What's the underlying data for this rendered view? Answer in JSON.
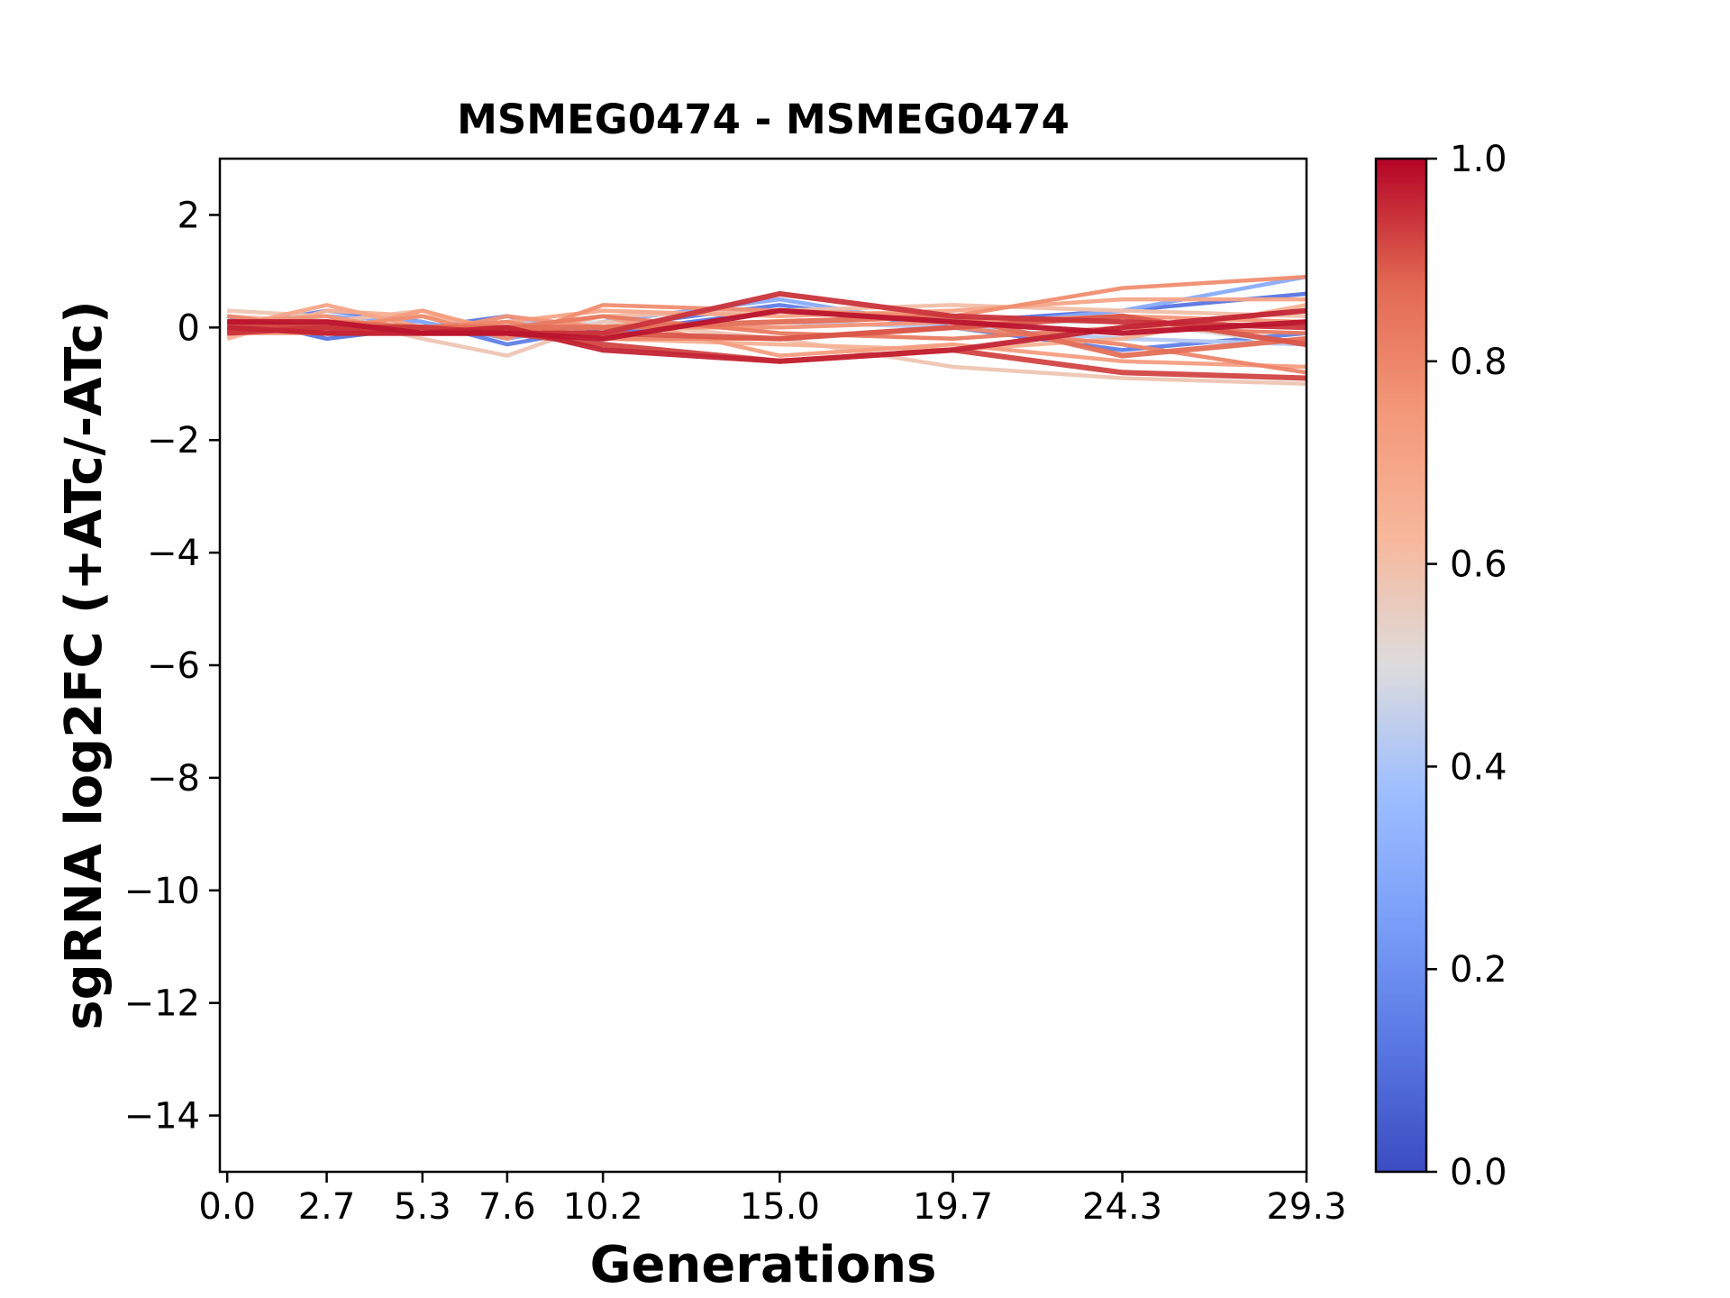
{
  "chart_data": {
    "type": "line",
    "title": "MSMEG0474 - MSMEG0474",
    "xlabel": "Generations",
    "ylabel": "sgRNA log2FC (+ATc/-ATc)",
    "x": [
      0.0,
      2.7,
      5.3,
      7.6,
      10.2,
      15.0,
      19.7,
      24.3,
      29.3
    ],
    "x_tick_labels": [
      "0.0",
      "2.7",
      "5.3",
      "7.6",
      "10.2",
      "15.0",
      "19.7",
      "24.3",
      "29.3"
    ],
    "xlim": [
      -0.2,
      29.3
    ],
    "ylim": [
      -15,
      3
    ],
    "y_ticks": [
      2,
      0,
      -2,
      -4,
      -6,
      -8,
      -10,
      -12,
      -14
    ],
    "y_tick_labels": [
      "2",
      "0",
      "−2",
      "−4",
      "−6",
      "−8",
      "−10",
      "−12",
      "−14"
    ],
    "grid": false,
    "colorbar": {
      "colormap": "coolwarm",
      "range": [
        0.0,
        1.0
      ],
      "ticks": [
        0.0,
        0.2,
        0.4,
        0.6,
        0.8,
        1.0
      ],
      "tick_labels": [
        "0.0",
        "0.2",
        "0.4",
        "0.6",
        "0.8",
        "1.0"
      ]
    },
    "series": [
      {
        "score": 0.12,
        "values": [
          0.2,
          -0.2,
          0.0,
          0.2,
          -0.1,
          0.3,
          0.1,
          0.3,
          0.6
        ]
      },
      {
        "score": 0.15,
        "values": [
          0.0,
          0.3,
          0.1,
          -0.3,
          0.0,
          0.4,
          0.0,
          -0.4,
          -0.1
        ]
      },
      {
        "score": 0.3,
        "values": [
          0.1,
          0.2,
          0.1,
          -0.2,
          0.1,
          0.5,
          0.0,
          0.3,
          0.9
        ]
      },
      {
        "score": 0.42,
        "values": [
          0.1,
          0.0,
          0.0,
          0.1,
          0.0,
          0.1,
          0.0,
          -0.2,
          -0.3
        ]
      },
      {
        "score": 0.5,
        "values": [
          0.0,
          0.1,
          0.0,
          0.0,
          0.1,
          0.0,
          0.1,
          0.1,
          -0.3
        ]
      },
      {
        "score": 0.58,
        "values": [
          0.3,
          0.2,
          -0.2,
          -0.5,
          0.1,
          -0.2,
          -0.7,
          -0.9,
          -1.0
        ]
      },
      {
        "score": 0.6,
        "values": [
          0.2,
          0.1,
          0.3,
          -0.1,
          0.2,
          0.3,
          0.4,
          0.3,
          0.2
        ]
      },
      {
        "score": 0.65,
        "values": [
          -0.2,
          0.3,
          0.2,
          0.0,
          -0.2,
          -0.3,
          -0.4,
          -0.2,
          0.4
        ]
      },
      {
        "score": 0.7,
        "values": [
          0.0,
          0.4,
          0.0,
          0.1,
          0.3,
          0.2,
          0.3,
          0.5,
          0.5
        ]
      },
      {
        "score": 0.73,
        "values": [
          -0.1,
          -0.1,
          0.3,
          -0.1,
          0.2,
          -0.5,
          -0.3,
          -0.6,
          -0.7
        ]
      },
      {
        "score": 0.76,
        "values": [
          0.1,
          0.2,
          -0.1,
          0.2,
          0.0,
          0.0,
          0.1,
          0.2,
          0.1
        ]
      },
      {
        "score": 0.78,
        "values": [
          0.0,
          0.0,
          0.2,
          -0.2,
          0.4,
          0.3,
          0.2,
          0.7,
          0.9
        ]
      },
      {
        "score": 0.8,
        "values": [
          0.2,
          0.0,
          0.0,
          0.1,
          -0.2,
          -0.2,
          0.0,
          -0.3,
          -0.8
        ]
      },
      {
        "score": 0.83,
        "values": [
          0.0,
          0.0,
          -0.1,
          0.0,
          0.2,
          -0.1,
          -0.2,
          0.0,
          -0.1
        ]
      },
      {
        "score": 0.86,
        "values": [
          -0.1,
          0.1,
          0.0,
          0.0,
          0.0,
          0.1,
          0.2,
          -0.5,
          -0.2
        ]
      },
      {
        "score": 0.9,
        "values": [
          0.0,
          -0.1,
          -0.1,
          -0.1,
          -0.1,
          -0.2,
          0.0,
          0.2,
          -0.3
        ]
      },
      {
        "score": 0.92,
        "values": [
          0.1,
          0.0,
          -0.1,
          -0.1,
          -0.3,
          -0.6,
          -0.4,
          -0.8,
          -0.9
        ]
      },
      {
        "score": 0.94,
        "values": [
          -0.1,
          0.0,
          0.0,
          -0.1,
          -0.1,
          0.6,
          0.2,
          0.1,
          0.0
        ]
      },
      {
        "score": 0.96,
        "values": [
          0.0,
          -0.1,
          -0.1,
          0.0,
          -0.4,
          -0.6,
          -0.4,
          0.0,
          0.3
        ]
      },
      {
        "score": 0.98,
        "values": [
          0.1,
          0.1,
          -0.1,
          -0.1,
          -0.2,
          0.3,
          0.1,
          -0.1,
          0.1
        ]
      }
    ]
  }
}
